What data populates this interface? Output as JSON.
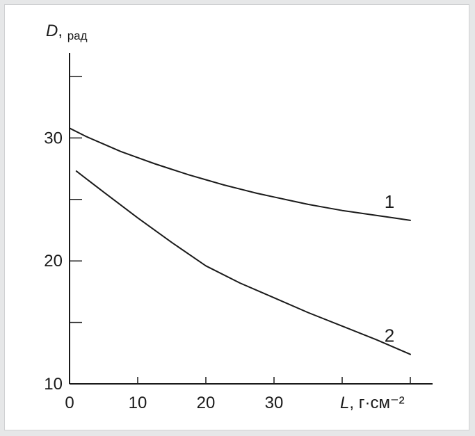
{
  "chart_data": {
    "type": "line",
    "ylabel": {
      "symbol": "D",
      "unit": "рад"
    },
    "xlabel": {
      "symbol": "L",
      "unit": "г·см⁻²"
    },
    "xlim": [
      0,
      50
    ],
    "ylim": [
      10,
      35
    ],
    "x_ticks": [
      0,
      10,
      20,
      30,
      40,
      50
    ],
    "x_tick_labels": [
      "0",
      "10",
      "20",
      "30"
    ],
    "y_ticks": [
      10,
      15,
      20,
      25,
      30,
      35
    ],
    "y_tick_labels": [
      "10",
      "20",
      "30"
    ],
    "grid": false,
    "line_color": "#1a1a1a",
    "series": [
      {
        "name": "1",
        "x": [
          0,
          2.5,
          5,
          7.5,
          10,
          12.5,
          15,
          17.5,
          20,
          22.5,
          25,
          27.5,
          30,
          32.5,
          35,
          37.5,
          40,
          42.5,
          45,
          47.5,
          50
        ],
        "y": [
          30.8,
          30.1,
          29.5,
          28.9,
          28.4,
          27.9,
          27.45,
          27.0,
          26.6,
          26.2,
          25.85,
          25.5,
          25.2,
          24.9,
          24.6,
          24.35,
          24.1,
          23.9,
          23.7,
          23.5,
          23.3
        ]
      },
      {
        "name": "2",
        "x": [
          1,
          5,
          10,
          15,
          20,
          25,
          30,
          35,
          40,
          45,
          50
        ],
        "y": [
          27.3,
          25.6,
          23.5,
          21.5,
          19.6,
          18.2,
          17.0,
          15.8,
          14.7,
          13.6,
          12.4
        ]
      }
    ]
  }
}
